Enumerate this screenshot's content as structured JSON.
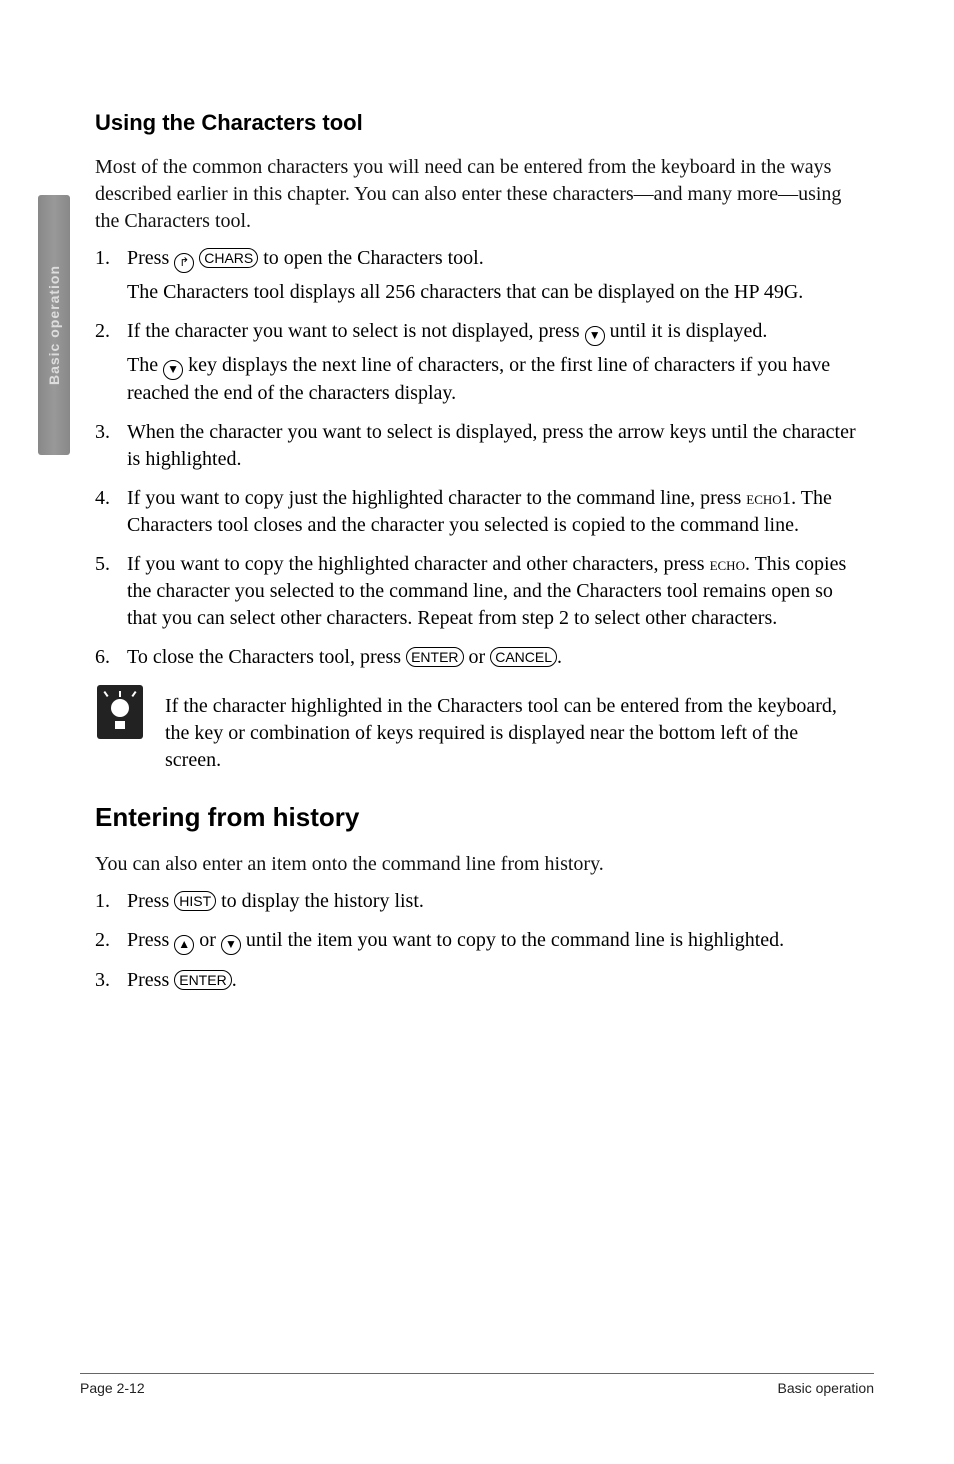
{
  "sideTab": {
    "label": "Basic operation"
  },
  "section1": {
    "title": "Using the Characters tool",
    "intro": "Most of the common characters you will need can be entered from the keyboard in the ways described earlier in this chapter. You can also enter these characters—and many more—using the Characters tool.",
    "steps": {
      "s1a": "Press ",
      "s1b": " to open the Characters tool.",
      "s1sub": "The Characters tool displays all 256 characters that can be displayed on the HP 49G.",
      "s2a": "If the character you want to select is not displayed, press ",
      "s2b": " until it is displayed.",
      "s2suba": "The ",
      "s2subb": " key displays the next line of characters, or the first line of characters if you have reached the end of the characters display.",
      "s3": "When the character you want to select is displayed, press the arrow keys until the character is highlighted.",
      "s4a": "If you want to copy just the highlighted character to the command line, press ",
      "s4b": ". The Characters tool closes and the character you selected is copied to the command line.",
      "s5a": "If you want to copy the highlighted character and other characters, press ",
      "s5b": ". This copies the character you selected to the command line, and the Characters tool remains open so that you can select other characters. Repeat from step 2 to select other characters.",
      "s6a": "To close the Characters tool, press ",
      "s6b": " or ",
      "s6c": "."
    },
    "echo1": "echo1",
    "echo": "echo",
    "tip": "If the character highlighted in the Characters tool can be entered from the keyboard, the key or combination of keys required is displayed near the bottom left of the screen."
  },
  "section2": {
    "title": "Entering from history",
    "intro": "You can also enter an item onto the command line from history.",
    "steps": {
      "s1a": "Press ",
      "s1b": " to display the history list.",
      "s2a": "Press ",
      "s2b": " or ",
      "s2c": " until the item you want to copy to the command line is highlighted.",
      "s3a": "Press ",
      "s3b": "."
    }
  },
  "keys": {
    "shift": "↱",
    "chars": "CHARS",
    "down": "▼",
    "up": "▲",
    "enter": "ENTER",
    "cancel": "CANCEL",
    "hist": "HIST"
  },
  "footer": {
    "left": "Page 2-12",
    "right": "Basic operation"
  },
  "style": {
    "body_font_size": 20,
    "heading3_font_size": 22,
    "heading2_font_size": 26,
    "text_color": "#000000",
    "background": "#ffffff",
    "footer_font_size": 14,
    "side_tab_bg": "#909090"
  }
}
